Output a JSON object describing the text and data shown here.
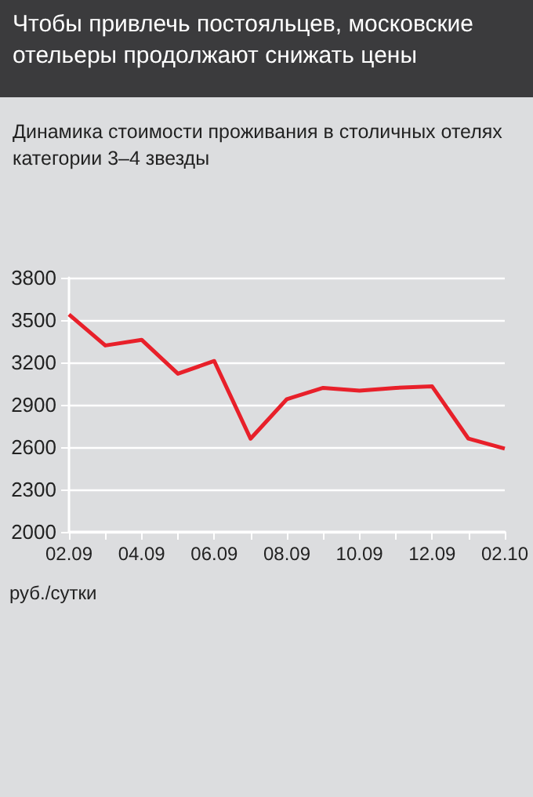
{
  "chart_data": {
    "type": "line",
    "title": "Чтобы привлечь постояльцев, московские отельеры продолжают снижать цены",
    "subtitle": "Динамика стоимости проживания в столичных отелях категории 3–4 звезды",
    "ylabel": "руб./сутки",
    "categories": [
      "02.09",
      null,
      "04.09",
      null,
      "06.09",
      null,
      "08.09",
      null,
      "10.09",
      null,
      "12.09",
      null,
      "02.10"
    ],
    "series": [
      {
        "color": "#e8202a",
        "values": [
          3540,
          3320,
          3360,
          3120,
          3210,
          2660,
          2940,
          3020,
          3000,
          3020,
          3030,
          2660,
          2590
        ]
      }
    ],
    "ylim": [
      2000,
      3800
    ],
    "yticks": [
      2000,
      2300,
      2600,
      2900,
      3200,
      3500,
      3800
    ],
    "grid": "y",
    "marker": "none",
    "line_style": "solid"
  }
}
